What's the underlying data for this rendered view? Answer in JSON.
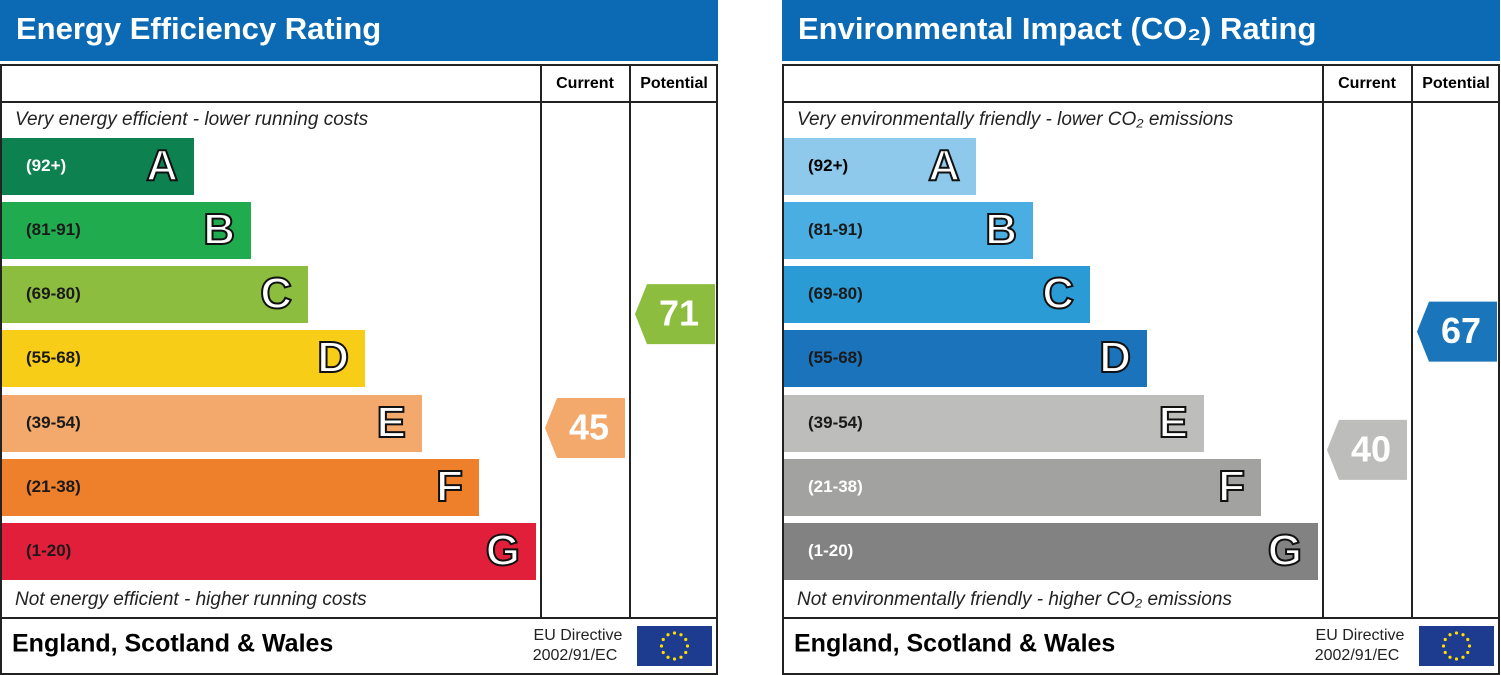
{
  "panels": [
    {
      "title": "Energy Efficiency Rating",
      "columns": [
        "Current",
        "Potential"
      ],
      "top_note": "Very energy efficient - lower running costs",
      "bottom_note": "Not energy efficient - higher running costs",
      "bands": [
        {
          "range": "(92+)",
          "letter": "A",
          "color": "#0e8151",
          "text_color": "#ffffff"
        },
        {
          "range": "(81-91)",
          "letter": "B",
          "color": "#21ab4f",
          "text_color": "#1a1a1a"
        },
        {
          "range": "(69-80)",
          "letter": "C",
          "color": "#8dbd3e",
          "text_color": "#1a1a1a"
        },
        {
          "range": "(55-68)",
          "letter": "D",
          "color": "#f7cd17",
          "text_color": "#1a1a1a"
        },
        {
          "range": "(39-54)",
          "letter": "E",
          "color": "#f2a96b",
          "text_color": "#1a1a1a"
        },
        {
          "range": "(21-38)",
          "letter": "F",
          "color": "#ee7f2b",
          "text_color": "#1a1a1a"
        },
        {
          "range": "(1-20)",
          "letter": "G",
          "color": "#e21f3b",
          "text_color": "#1a1a1a"
        }
      ],
      "current": 45,
      "current_color": "#f2a96b",
      "potential": 71,
      "potential_color": "#8dbd3e",
      "region": "England, Scotland & Wales",
      "directive": [
        "EU Directive",
        "2002/91/EC"
      ]
    },
    {
      "title": "Environmental Impact (CO₂) Rating",
      "columns": [
        "Current",
        "Potential"
      ],
      "top_note": "Very environmentally friendly - lower CO₂ emissions",
      "bottom_note": "Not environmentally friendly - higher CO₂ emissions",
      "bands": [
        {
          "range": "(92+)",
          "letter": "A",
          "color": "#8ec8ea",
          "text_color": "#000000"
        },
        {
          "range": "(81-91)",
          "letter": "B",
          "color": "#4aaee2",
          "text_color": "#1a1a1a"
        },
        {
          "range": "(69-80)",
          "letter": "C",
          "color": "#2b9bd6",
          "text_color": "#1a1a1a"
        },
        {
          "range": "(55-68)",
          "letter": "D",
          "color": "#1a73bb",
          "text_color": "#1a1a1a"
        },
        {
          "range": "(39-54)",
          "letter": "E",
          "color": "#bdbdbb",
          "text_color": "#1a1a1a"
        },
        {
          "range": "(21-38)",
          "letter": "F",
          "color": "#a2a2a0",
          "text_color": "#ffffff"
        },
        {
          "range": "(1-20)",
          "letter": "G",
          "color": "#828282",
          "text_color": "#ffffff"
        }
      ],
      "current": 40,
      "current_color": "#bdbdbb",
      "potential": 67,
      "potential_color": "#1b75bb",
      "region": "England, Scotland & Wales",
      "directive": [
        "EU Directive",
        "2002/91/EC"
      ]
    }
  ]
}
